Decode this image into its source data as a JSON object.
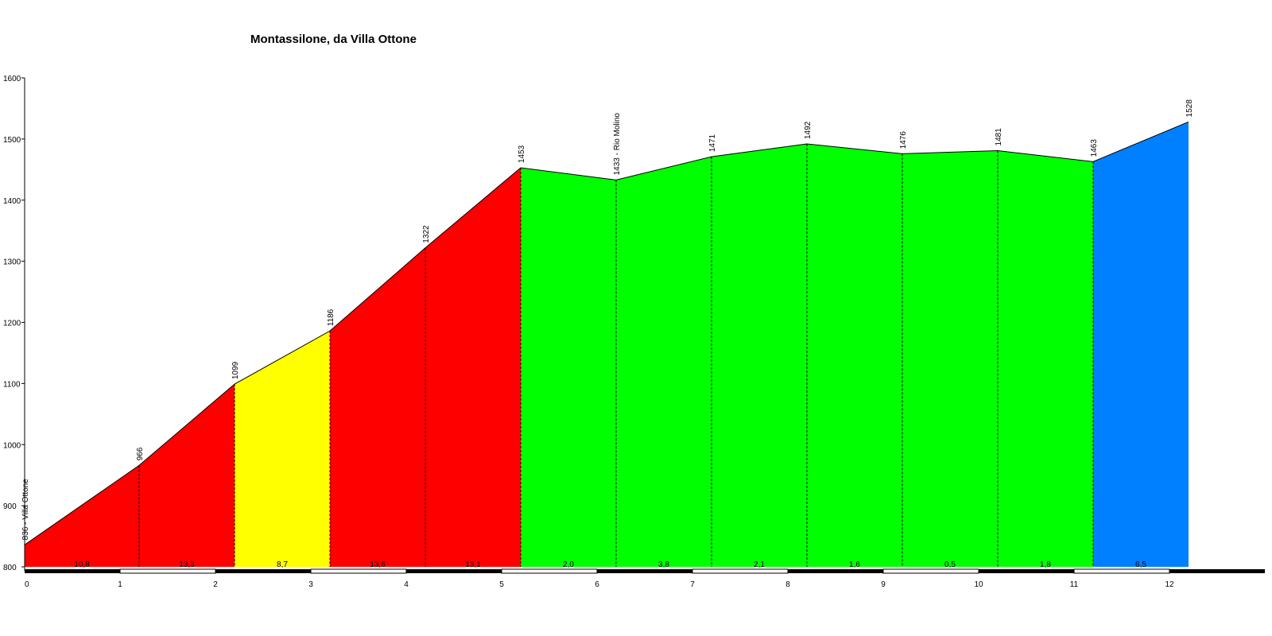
{
  "chart_data": {
    "type": "area",
    "title": "Montassilone, da Villa Ottone",
    "xlabel": "",
    "ylabel": "",
    "xlim": [
      0,
      12.8
    ],
    "ylim": [
      800,
      1600
    ],
    "x_ticks": [
      "0",
      "1",
      "2",
      "3",
      "4",
      "5",
      "6",
      "7",
      "8",
      "9",
      "10",
      "11",
      "12"
    ],
    "y_ticks": [
      "800",
      "900",
      "1000",
      "1100",
      "1200",
      "1300",
      "1400",
      "1500",
      "1600"
    ],
    "points": [
      {
        "x": 0,
        "y": 836,
        "label": "836 - Villa Ottone"
      },
      {
        "x": 1.2,
        "y": 966,
        "label": "966"
      },
      {
        "x": 2.2,
        "y": 1099,
        "label": "1099"
      },
      {
        "x": 3.2,
        "y": 1186,
        "label": "1186"
      },
      {
        "x": 4.2,
        "y": 1322,
        "label": "1322"
      },
      {
        "x": 5.2,
        "y": 1453,
        "label": "1453"
      },
      {
        "x": 6.2,
        "y": 1433,
        "label": "1433 - Rio Molino"
      },
      {
        "x": 7.2,
        "y": 1471,
        "label": "1471"
      },
      {
        "x": 8.2,
        "y": 1492,
        "label": "1492"
      },
      {
        "x": 9.2,
        "y": 1476,
        "label": "1476"
      },
      {
        "x": 10.2,
        "y": 1481,
        "label": "1481"
      },
      {
        "x": 11.2,
        "y": 1463,
        "label": "1463"
      },
      {
        "x": 12.2,
        "y": 1528,
        "label": "1528"
      }
    ],
    "segments": [
      {
        "gradient": "10,8",
        "color": "#ff0000"
      },
      {
        "gradient": "13,3",
        "color": "#ff0000"
      },
      {
        "gradient": "8,7",
        "color": "#ffff00"
      },
      {
        "gradient": "13,6",
        "color": "#ff0000"
      },
      {
        "gradient": "13,1",
        "color": "#ff0000"
      },
      {
        "gradient": "2,0",
        "color": "#00ff00"
      },
      {
        "gradient": "3,8",
        "color": "#00ff00"
      },
      {
        "gradient": "2,1",
        "color": "#00ff00"
      },
      {
        "gradient": "1,6",
        "color": "#00ff00"
      },
      {
        "gradient": "0,5",
        "color": "#00ff00"
      },
      {
        "gradient": "1,8",
        "color": "#00ff00"
      },
      {
        "gradient": "6,5",
        "color": "#0080ff"
      }
    ],
    "grid": false,
    "legend": "none"
  }
}
